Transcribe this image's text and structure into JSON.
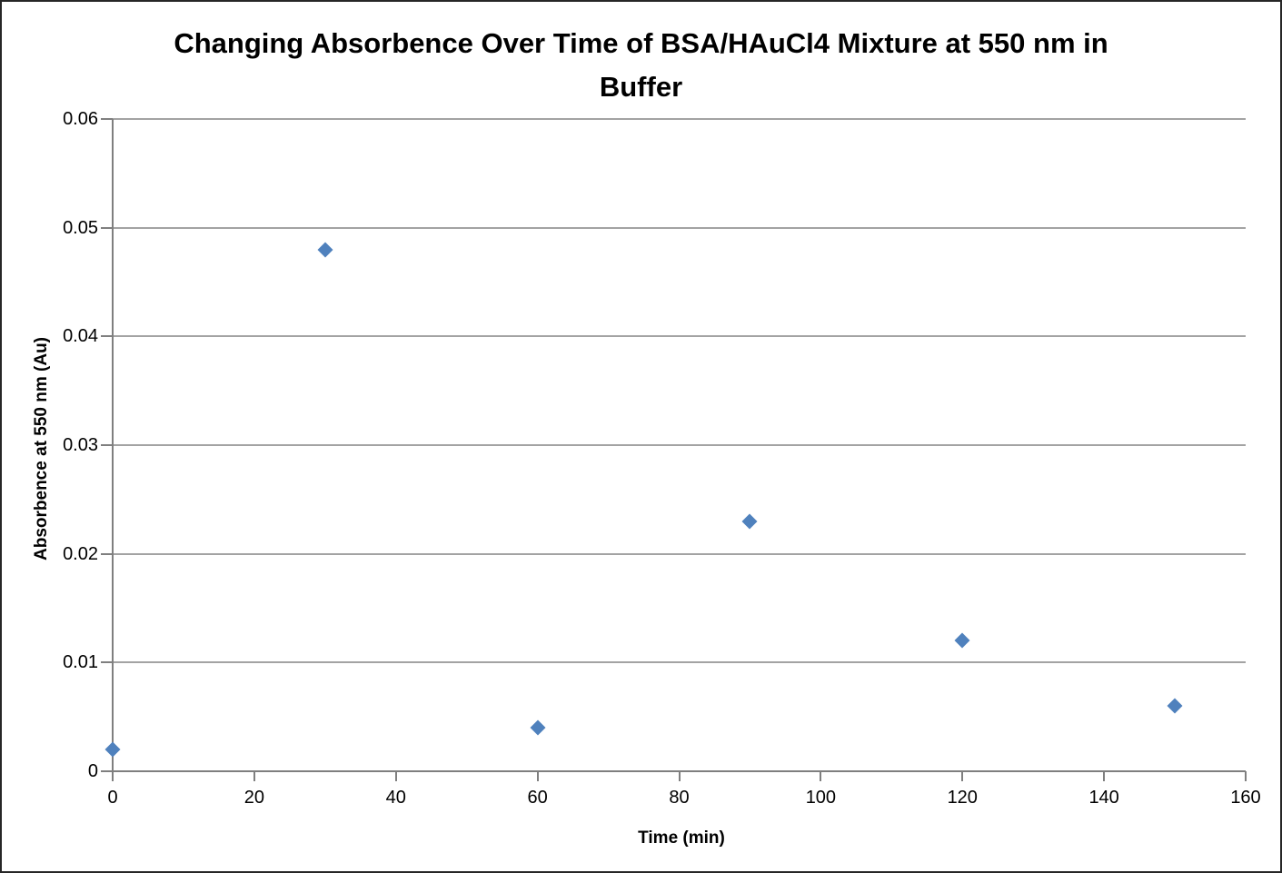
{
  "chart_data": {
    "type": "scatter",
    "title": "Changing Absorbence Over Time of BSA/HAuCl4 Mixture at 550 nm in Buffer",
    "title_lines": [
      "Changing Absorbence Over Time of BSA/HAuCl4 Mixture at 550 nm in",
      "Buffer"
    ],
    "xlabel": "Time (min)",
    "ylabel": "Absorbence at 550 nm (Au)",
    "x": [
      0,
      30,
      60,
      90,
      120,
      150
    ],
    "y": [
      0.002,
      0.048,
      0.004,
      0.023,
      0.012,
      0.006
    ],
    "xlim": [
      0,
      160
    ],
    "ylim": [
      0,
      0.06
    ],
    "xticks": [
      0,
      20,
      40,
      60,
      80,
      100,
      120,
      140,
      160
    ],
    "xtick_labels": [
      "0",
      "20",
      "40",
      "60",
      "80",
      "100",
      "120",
      "140",
      "160"
    ],
    "yticks": [
      0,
      0.01,
      0.02,
      0.03,
      0.04,
      0.05,
      0.06
    ],
    "ytick_labels": [
      "0",
      "0.01",
      "0.02",
      "0.03",
      "0.04",
      "0.05",
      "0.06"
    ],
    "grid": "horizontal",
    "legend": "none",
    "marker": "diamond",
    "marker_color": "#4F81BD",
    "gridline_color": "#A3A3A3",
    "axis_color": "#7F7F7F"
  }
}
